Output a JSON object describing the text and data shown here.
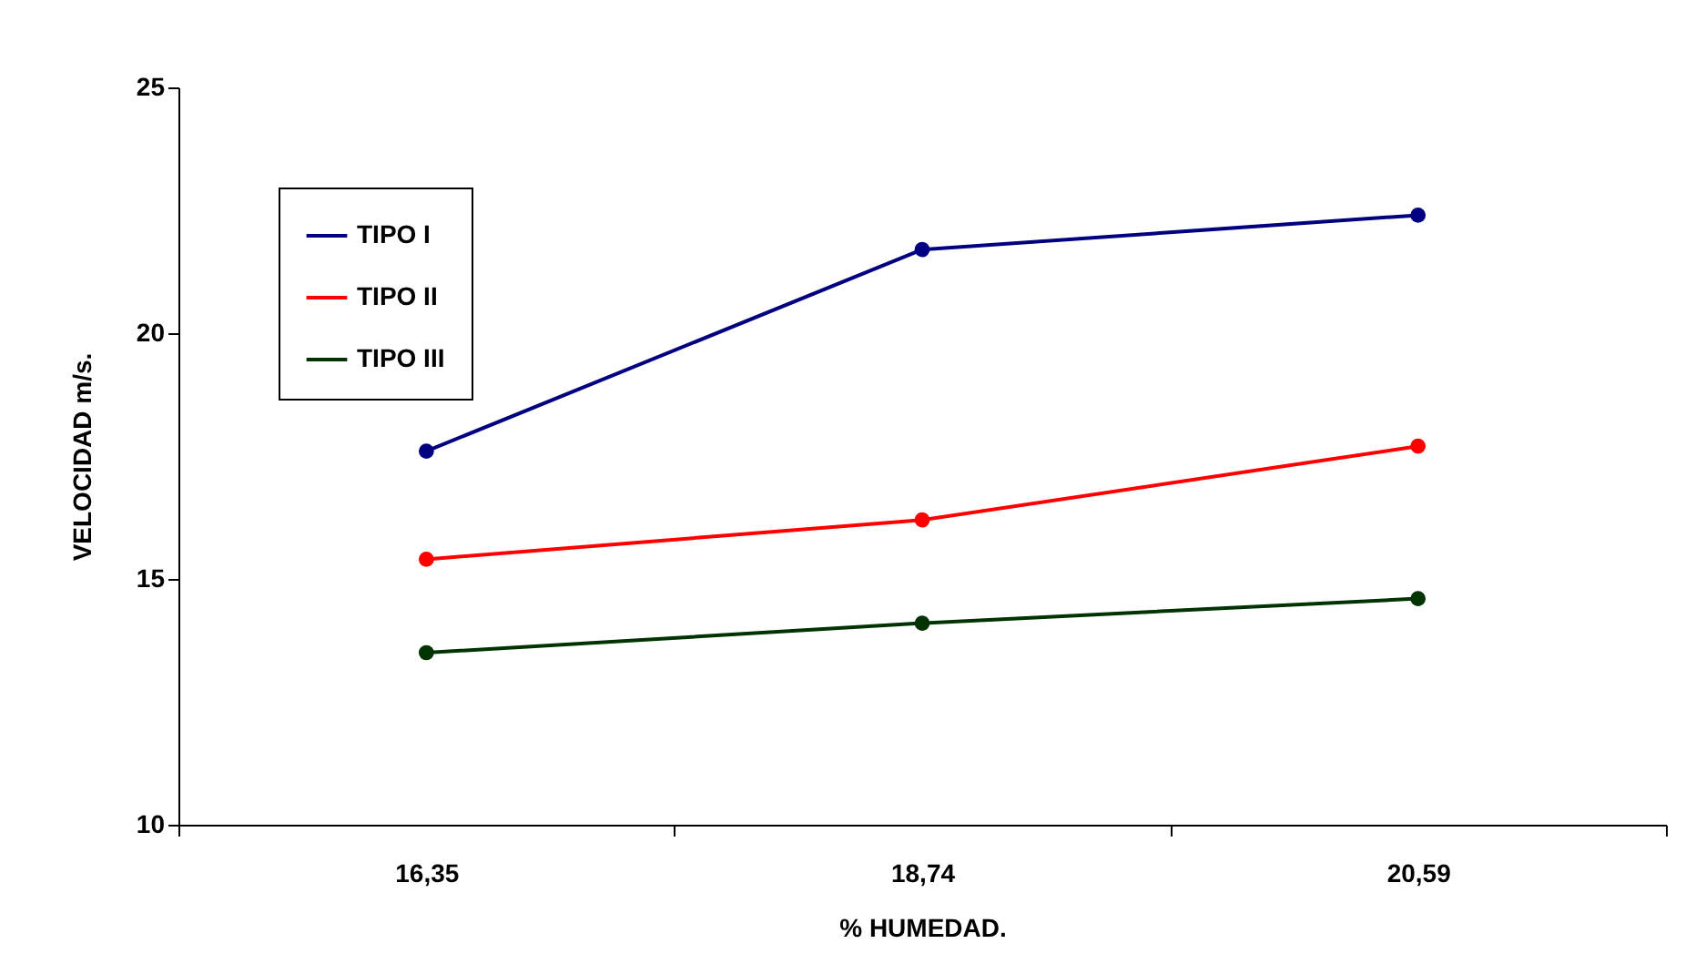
{
  "chart_data": {
    "type": "line",
    "xlabel": "% HUMEDAD.",
    "ylabel": "VELOCIDAD m/s.",
    "categories": [
      "16,35",
      "18,74",
      "20,59"
    ],
    "series": [
      {
        "name": "TIPO I",
        "color": "#000080",
        "values": [
          17.6,
          21.7,
          22.4
        ]
      },
      {
        "name": "TIPO II",
        "color": "#ff0000",
        "values": [
          15.4,
          16.2,
          17.7
        ]
      },
      {
        "name": "TIPO III",
        "color": "#003300",
        "values": [
          13.5,
          14.1,
          14.6
        ]
      }
    ],
    "ylim": [
      10,
      25
    ],
    "yticks": [
      10,
      15,
      20,
      25
    ],
    "grid": false,
    "legend": "top left",
    "marker": "circle",
    "line_style": "solid"
  }
}
